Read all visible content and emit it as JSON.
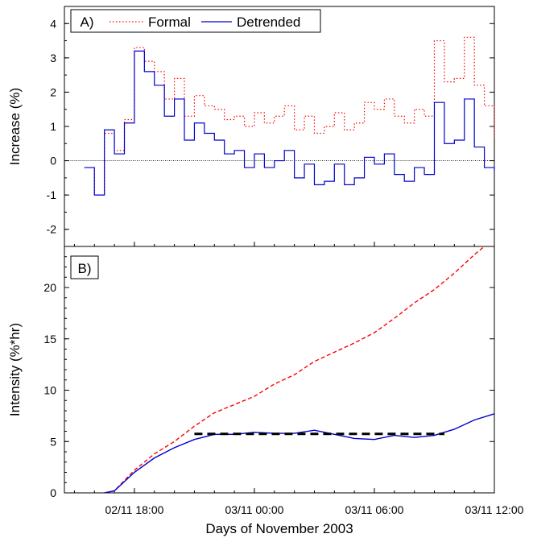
{
  "chart_data": [
    {
      "panel": "A)",
      "type": "line",
      "ylabel": "Increase (%)",
      "ylim": [
        -2.5,
        4.5
      ],
      "yticks": [
        -2,
        -1,
        0,
        1,
        2,
        3,
        4
      ],
      "grid": false,
      "zero_line": true,
      "legend_placement": "top-left",
      "colors": {
        "Formal": "#ff0000",
        "Detrended": "#0000cc"
      },
      "series": [
        {
          "name": "Formal",
          "style": "dotted step",
          "color": "#ff0000",
          "x": [
            "02/11 15:30",
            "02/11 16:00",
            "02/11 16:30",
            "02/11 17:00",
            "02/11 17:30",
            "02/11 18:00",
            "02/11 18:30",
            "02/11 19:00",
            "02/11 19:30",
            "02/11 20:00",
            "02/11 20:30",
            "02/11 21:00",
            "02/11 21:30",
            "02/11 22:00",
            "02/11 22:30",
            "02/11 23:00",
            "02/11 23:30",
            "03/11 00:00",
            "03/11 00:30",
            "03/11 01:00",
            "03/11 01:30",
            "03/11 02:00",
            "03/11 02:30",
            "03/11 03:00",
            "03/11 03:30",
            "03/11 04:00",
            "03/11 04:30",
            "03/11 05:00",
            "03/11 05:30",
            "03/11 06:00",
            "03/11 06:30",
            "03/11 07:00",
            "03/11 07:30",
            "03/11 08:00",
            "03/11 08:30",
            "03/11 09:00",
            "03/11 09:30",
            "03/11 10:00",
            "03/11 10:30",
            "03/11 11:00",
            "03/11 11:30",
            "03/11 12:00"
          ],
          "values": [
            -0.2,
            -1.0,
            0.8,
            0.3,
            1.2,
            3.3,
            2.9,
            2.6,
            1.8,
            2.4,
            1.3,
            1.9,
            1.6,
            1.5,
            1.2,
            1.3,
            1.0,
            1.4,
            1.1,
            1.3,
            1.6,
            0.9,
            1.3,
            0.8,
            1.0,
            1.4,
            0.9,
            1.1,
            1.7,
            1.5,
            1.8,
            1.3,
            1.1,
            1.5,
            1.3,
            3.5,
            2.3,
            2.4,
            3.6,
            2.2,
            1.6,
            0.7
          ]
        },
        {
          "name": "Detrended",
          "style": "solid step",
          "color": "#0000cc",
          "x": [
            "02/11 15:30",
            "02/11 16:00",
            "02/11 16:30",
            "02/11 17:00",
            "02/11 17:30",
            "02/11 18:00",
            "02/11 18:30",
            "02/11 19:00",
            "02/11 19:30",
            "02/11 20:00",
            "02/11 20:30",
            "02/11 21:00",
            "02/11 21:30",
            "02/11 22:00",
            "02/11 22:30",
            "02/11 23:00",
            "02/11 23:30",
            "03/11 00:00",
            "03/11 00:30",
            "03/11 01:00",
            "03/11 01:30",
            "03/11 02:00",
            "03/11 02:30",
            "03/11 03:00",
            "03/11 03:30",
            "03/11 04:00",
            "03/11 04:30",
            "03/11 05:00",
            "03/11 05:30",
            "03/11 06:00",
            "03/11 06:30",
            "03/11 07:00",
            "03/11 07:30",
            "03/11 08:00",
            "03/11 08:30",
            "03/11 09:00",
            "03/11 09:30",
            "03/11 10:00",
            "03/11 10:30",
            "03/11 11:00",
            "03/11 11:30",
            "03/11 12:00"
          ],
          "values": [
            -0.2,
            -1.0,
            0.9,
            0.2,
            1.1,
            3.2,
            2.6,
            2.2,
            1.3,
            1.8,
            0.6,
            1.1,
            0.8,
            0.6,
            0.2,
            0.3,
            -0.2,
            0.2,
            -0.2,
            0.0,
            0.3,
            -0.5,
            -0.1,
            -0.7,
            -0.6,
            -0.1,
            -0.7,
            -0.5,
            0.1,
            -0.1,
            0.2,
            -0.4,
            -0.6,
            -0.2,
            -0.4,
            1.7,
            0.5,
            0.6,
            1.8,
            0.4,
            -0.2,
            -0.3
          ]
        }
      ]
    },
    {
      "panel": "B)",
      "type": "line",
      "xlabel": "Days of November 2003",
      "ylabel": "Intensity (%*hr)",
      "ylim": [
        0,
        24
      ],
      "yticks": [
        0,
        5,
        10,
        15,
        20
      ],
      "xticks": [
        "02/11 18:00",
        "03/11 00:00",
        "03/11 06:00",
        "03/11 12:00"
      ],
      "grid": false,
      "series": [
        {
          "color": "#ff0000",
          "style": "dashed",
          "x": [
            "02/11 16:30",
            "02/11 17:00",
            "02/11 17:30",
            "02/11 18:00",
            "02/11 19:00",
            "02/11 20:00",
            "02/11 21:00",
            "02/11 22:00",
            "02/11 23:00",
            "03/11 00:00",
            "03/11 01:00",
            "03/11 02:00",
            "03/11 03:00",
            "03/11 04:00",
            "03/11 05:00",
            "03/11 06:00",
            "03/11 07:00",
            "03/11 08:00",
            "03/11 09:00",
            "03/11 10:00",
            "03/11 11:00",
            "03/11 11:30"
          ],
          "values": [
            0,
            0.2,
            1.2,
            2.2,
            3.8,
            5.0,
            6.5,
            7.8,
            8.6,
            9.4,
            10.6,
            11.5,
            12.8,
            13.7,
            14.6,
            15.6,
            17.0,
            18.5,
            19.8,
            21.4,
            23.2,
            24.0
          ]
        },
        {
          "color": "#0000cc",
          "style": "solid",
          "x": [
            "02/11 16:30",
            "02/11 17:00",
            "02/11 17:30",
            "02/11 18:00",
            "02/11 19:00",
            "02/11 20:00",
            "02/11 21:00",
            "02/11 22:00",
            "02/11 23:00",
            "03/11 00:00",
            "03/11 01:00",
            "03/11 02:00",
            "03/11 03:00",
            "03/11 04:00",
            "03/11 05:00",
            "03/11 06:00",
            "03/11 07:00",
            "03/11 08:00",
            "03/11 09:00",
            "03/11 10:00",
            "03/11 11:00",
            "03/11 12:00"
          ],
          "values": [
            0,
            0.2,
            1.1,
            2.0,
            3.4,
            4.4,
            5.2,
            5.7,
            5.7,
            5.9,
            5.8,
            5.8,
            6.1,
            5.7,
            5.3,
            5.2,
            5.6,
            5.4,
            5.6,
            6.2,
            7.1,
            7.7
          ]
        },
        {
          "color": "#000000",
          "style": "thick dashed horizontal",
          "x": [
            "02/11 21:00",
            "03/11 09:30"
          ],
          "values": [
            5.75,
            5.75
          ]
        }
      ]
    }
  ]
}
